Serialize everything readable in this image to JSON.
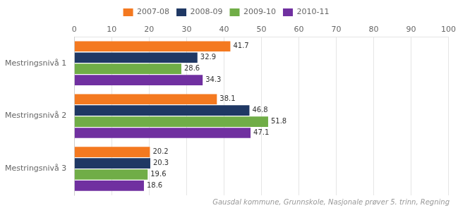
{
  "chart_data": {
    "type": "bar",
    "orientation": "horizontal",
    "categories": [
      "Mestringsnivå 1",
      "Mestringsnivå 2",
      "Mestringsnivå 3"
    ],
    "series": [
      {
        "name": "2007-08",
        "color": "#F47920",
        "values": [
          41.7,
          38.1,
          20.2
        ]
      },
      {
        "name": "2008-09",
        "color": "#1F3864",
        "values": [
          32.9,
          46.8,
          20.3
        ]
      },
      {
        "name": "2009-10",
        "color": "#70AD47",
        "values": [
          28.6,
          51.8,
          19.6
        ]
      },
      {
        "name": "2010-11",
        "color": "#7030A0",
        "values": [
          34.3,
          47.1,
          18.6
        ]
      }
    ],
    "xlim": [
      0,
      100
    ],
    "xticks": [
      0,
      10,
      20,
      30,
      40,
      50,
      60,
      70,
      80,
      90,
      100
    ],
    "grid": true,
    "data_labels": true,
    "legend": "top",
    "footnote": "Gausdal kommune, Grunnskole, Nasjonale prøver 5. trinn, Regning"
  }
}
